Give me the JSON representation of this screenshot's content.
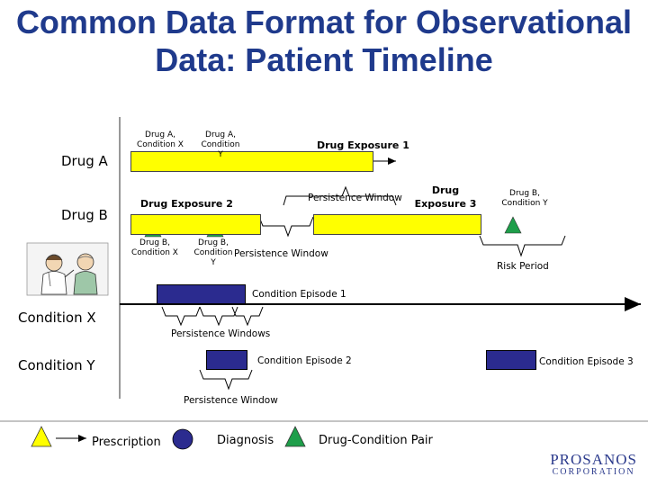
{
  "title": "Common Data Format for Observational Data: Patient Timeline",
  "rows": {
    "drug_a": "Drug A",
    "drug_b": "Drug B",
    "condition_x": "Condition X",
    "condition_y": "Condition Y"
  },
  "drug_a_labels": {
    "pair1": "Drug A, Condition X",
    "pair2": "Drug A, Condition Y",
    "exposure1": "Drug Exposure 1",
    "persistence": "Persistence Window"
  },
  "drug_b_labels": {
    "exposure2": "Drug Exposure 2",
    "exposure3": "Drug Exposure 3",
    "pair1": "Drug B, Condition X",
    "pair2": "Drug B, Condition Y",
    "persistence": "Persistence Window",
    "pair3": "Drug B, Condition Y",
    "risk_period": "Risk Period"
  },
  "condition_labels": {
    "episode1": "Condition Episode 1",
    "persistence_windows": "Persistence Windows",
    "episode2": "Condition Episode 2",
    "episode3": "Condition Episode 3",
    "persistence_window": "Persistence Window"
  },
  "legend": {
    "prescription": "Prescription",
    "diagnosis": "Diagnosis",
    "drug_condition_pair": "Drug-Condition Pair"
  },
  "logo": {
    "line1": "PROSANOS",
    "line2": "CORPORATION"
  },
  "colors": {
    "title": "#1f3a8c",
    "bar": "#ffff00",
    "episode": "#2b2b8f",
    "pair": "#1e9e4a"
  }
}
